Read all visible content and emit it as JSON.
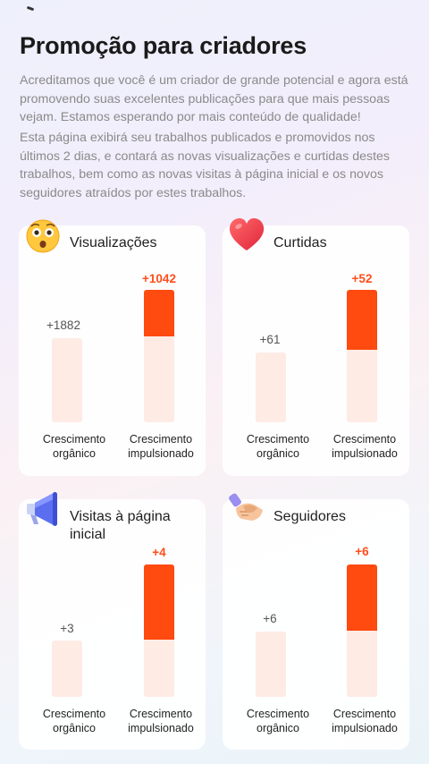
{
  "page": {
    "title": "Promoção para criadores",
    "description_1": "Acreditamos que você é um criador de grande potencial e agora está promovendo suas excelentes publicações para que mais pessoas vejam. Estamos esperando por mais conteúdo de qualidade!",
    "description_2": "Esta página exibirá seu trabalhos publicados e promovidos nos últimos 2 dias, e contará as novas visualizações e curtidas destes trabalhos, bem como as novas visitas à página inicial e os novos seguidores atraídos por estes trabalhos."
  },
  "labels": {
    "organic": "Crescimento orgânico",
    "boosted": "Crescimento impulsionado"
  },
  "cards": [
    {
      "id": "views",
      "title": "Visualizações",
      "icon": "surprised-face-icon",
      "organic": "+1882",
      "boosted": "+1042",
      "organic_level": 0.55,
      "boosted_total_level": 1.0,
      "boosted_fill_level": 0.36
    },
    {
      "id": "likes",
      "title": "Curtidas",
      "icon": "heart-icon",
      "organic": "+61",
      "boosted": "+52",
      "organic_level": 0.55,
      "boosted_total_level": 1.0,
      "boosted_fill_level": 0.45
    },
    {
      "id": "visits",
      "title": "Visitas à página inicial",
      "icon": "megaphone-icon",
      "organic": "+3",
      "boosted": "+4",
      "organic_level": 0.43,
      "boosted_total_level": 1.0,
      "boosted_fill_level": 0.56
    },
    {
      "id": "followers",
      "title": "Seguidores",
      "icon": "handshake-icon",
      "organic": "+6",
      "boosted": "+6",
      "organic_level": 0.5,
      "boosted_total_level": 1.0,
      "boosted_fill_level": 0.5
    }
  ],
  "colors": {
    "accent": "#ff4a10",
    "bar_background": "#fdebe4",
    "boost_value": "#ff4d1a"
  }
}
